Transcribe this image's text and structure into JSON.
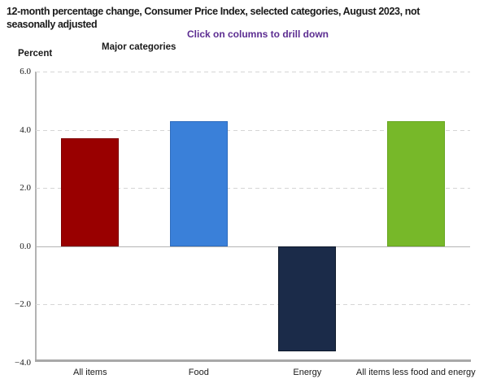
{
  "header": {
    "title_line1": "12-month percentage change, Consumer Price Index, selected categories, August 2023, not",
    "title_line2": "seasonally adjusted",
    "instruction": "Click on columns to drill down",
    "instruction_color": "#5c2d91",
    "x_axis_title": "Major categories",
    "y_axis_title": "Percent"
  },
  "chart_data": {
    "type": "bar",
    "title": "12-month percentage change, Consumer Price Index, selected categories, August 2023, not seasonally adjusted",
    "xlabel": "Major categories",
    "ylabel": "Percent",
    "categories": [
      "All items",
      "Food",
      "Energy",
      "All items less food and energy"
    ],
    "values": [
      3.7,
      4.3,
      -3.6,
      4.3
    ],
    "colors": [
      "#990000",
      "#3a80d9",
      "#1b2b49",
      "#77b829"
    ],
    "border_colors": [
      "#7d0000",
      "#2e6cbd",
      "#0c1729",
      "#68a621"
    ],
    "ylim": [
      -4.0,
      6.0
    ],
    "yticks": [
      6.0,
      4.0,
      2.0,
      0.0,
      -2.0,
      -4.0
    ],
    "grid": true,
    "gridline_style": "dashed",
    "legend": false
  }
}
